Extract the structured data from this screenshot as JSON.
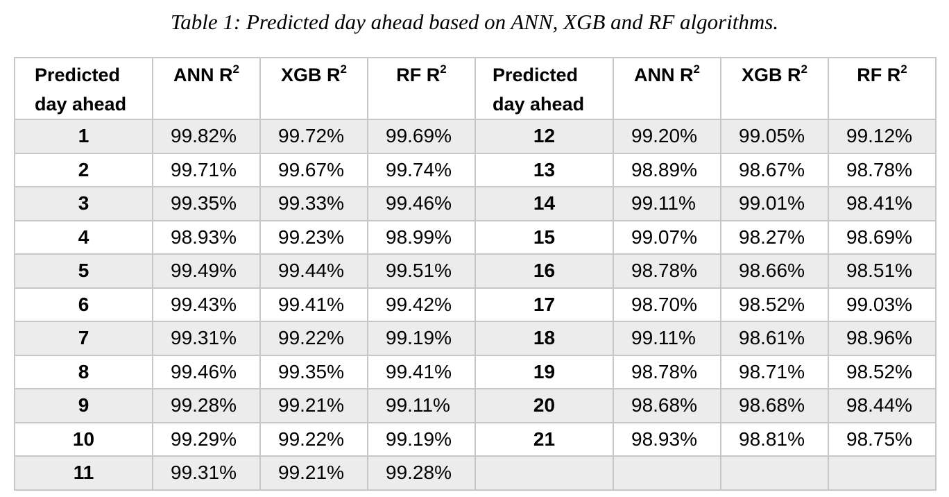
{
  "caption": "Table 1: Predicted day ahead based on ANN, XGB and RF algorithms.",
  "table": {
    "headers": [
      {
        "line1": "Predicted",
        "line2": "day ahead",
        "sup": ""
      },
      {
        "line1": "ANN R",
        "line2": "",
        "sup": "2"
      },
      {
        "line1": "XGB R",
        "line2": "",
        "sup": "2"
      },
      {
        "line1": "RF R",
        "line2": "",
        "sup": "2"
      },
      {
        "line1": "Predicted",
        "line2": "day ahead",
        "sup": ""
      },
      {
        "line1": "ANN R",
        "line2": "",
        "sup": "2"
      },
      {
        "line1": "XGB R",
        "line2": "",
        "sup": "2"
      },
      {
        "line1": "RF R",
        "line2": "",
        "sup": "2"
      }
    ],
    "rows": [
      [
        "1",
        "99.82%",
        "99.72%",
        "99.69%",
        "12",
        "99.20%",
        "99.05%",
        "99.12%"
      ],
      [
        "2",
        "99.71%",
        "99.67%",
        "99.74%",
        "13",
        "98.89%",
        "98.67%",
        "98.78%"
      ],
      [
        "3",
        "99.35%",
        "99.33%",
        "99.46%",
        "14",
        "99.11%",
        "99.01%",
        "98.41%"
      ],
      [
        "4",
        "98.93%",
        "99.23%",
        "98.99%",
        "15",
        "99.07%",
        "98.27%",
        "98.69%"
      ],
      [
        "5",
        "99.49%",
        "99.44%",
        "99.51%",
        "16",
        "98.78%",
        "98.66%",
        "98.51%"
      ],
      [
        "6",
        "99.43%",
        "99.41%",
        "99.42%",
        "17",
        "98.70%",
        "98.52%",
        "99.03%"
      ],
      [
        "7",
        "99.31%",
        "99.22%",
        "99.19%",
        "18",
        "99.11%",
        "98.61%",
        "98.96%"
      ],
      [
        "8",
        "99.46%",
        "99.35%",
        "99.41%",
        "19",
        "98.78%",
        "98.71%",
        "98.52%"
      ],
      [
        "9",
        "99.28%",
        "99.21%",
        "99.11%",
        "20",
        "98.68%",
        "98.68%",
        "98.44%"
      ],
      [
        "10",
        "99.29%",
        "99.22%",
        "99.19%",
        "21",
        "98.93%",
        "98.81%",
        "98.75%"
      ],
      [
        "11",
        "99.31%",
        "99.21%",
        "99.28%",
        "",
        "",
        "",
        ""
      ]
    ]
  }
}
